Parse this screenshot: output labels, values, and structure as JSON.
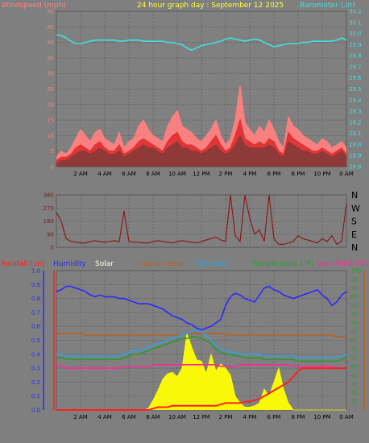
{
  "chart_data": [
    {
      "type": "line",
      "title": "24 hour graph day : September 12 2025",
      "left_axis_label": "Windspeed (mph)",
      "right_axis_label": "Barometer (.in)",
      "x_ticks": [
        "2 AM",
        "4 AM",
        "6 AM",
        "8 AM",
        "10 AM",
        "12 PM",
        "2 PM",
        "4 PM",
        "6 PM",
        "8 PM",
        "10 PM",
        "0 AM"
      ],
      "y_left_ticks": [
        0,
        5,
        10,
        15,
        20,
        25,
        30,
        35,
        40,
        45,
        50
      ],
      "y_left_range": [
        0,
        50
      ],
      "y_right_ticks": [
        28.8,
        28.9,
        29.0,
        29.1,
        29.2,
        29.3,
        29.4,
        29.5,
        29.6,
        29.7,
        29.8,
        29.9,
        30.0,
        30.1,
        30.2
      ],
      "y_right_range": [
        28.8,
        30.2
      ],
      "series": [
        {
          "key": "gust",
          "color": "#ff8080",
          "axis": "left",
          "values": [
            3,
            5,
            4,
            6,
            9,
            12,
            10,
            8,
            11,
            12,
            9,
            8,
            7,
            11,
            6,
            8,
            9,
            13,
            15,
            12,
            10,
            9,
            8,
            13,
            16,
            18,
            13,
            12,
            11,
            9,
            8,
            10,
            12,
            15,
            10,
            7,
            9,
            15,
            26,
            14,
            12,
            10,
            13,
            11,
            15,
            12,
            8,
            6,
            16,
            13,
            12,
            10,
            9,
            8,
            7,
            9,
            8,
            6,
            7,
            8,
            6
          ]
        },
        {
          "key": "speed",
          "color": "#e03030",
          "axis": "left",
          "values": [
            2,
            3,
            3,
            4,
            6,
            7,
            6,
            5,
            7,
            8,
            6,
            5,
            5,
            7,
            4,
            5,
            6,
            8,
            9,
            8,
            7,
            6,
            5,
            8,
            10,
            11,
            8,
            7,
            7,
            6,
            5,
            6,
            8,
            10,
            7,
            5,
            6,
            10,
            15,
            9,
            8,
            7,
            8,
            7,
            9,
            8,
            5,
            4,
            11,
            9,
            8,
            7,
            6,
            5,
            5,
            6,
            5,
            4,
            5,
            6,
            4
          ]
        },
        {
          "key": "average",
          "color": "#8a3a3a",
          "axis": "left",
          "values": [
            1,
            2,
            2,
            3,
            4,
            5,
            5,
            4,
            5,
            6,
            5,
            4,
            4,
            5,
            3,
            4,
            5,
            6,
            7,
            6,
            6,
            5,
            4,
            6,
            7,
            8,
            6,
            6,
            5,
            5,
            4,
            5,
            6,
            7,
            5,
            4,
            5,
            7,
            10,
            7,
            6,
            6,
            6,
            6,
            7,
            6,
            4,
            3,
            8,
            7,
            6,
            5,
            5,
            4,
            4,
            5,
            4,
            3,
            4,
            5,
            3
          ]
        },
        {
          "key": "barometer",
          "color": "#40e0e0",
          "axis": "right",
          "values": [
            29.99,
            29.98,
            29.96,
            29.93,
            29.91,
            29.91,
            29.92,
            29.93,
            29.94,
            29.94,
            29.94,
            29.94,
            29.94,
            29.93,
            29.93,
            29.94,
            29.94,
            29.94,
            29.93,
            29.93,
            29.93,
            29.93,
            29.93,
            29.92,
            29.92,
            29.91,
            29.9,
            29.87,
            29.85,
            29.87,
            29.89,
            29.9,
            29.91,
            29.92,
            29.93,
            29.95,
            29.96,
            29.95,
            29.94,
            29.93,
            29.94,
            29.95,
            29.94,
            29.92,
            29.9,
            29.88,
            29.89,
            29.9,
            29.91,
            29.91,
            29.91,
            29.92,
            29.92,
            29.93,
            29.93,
            29.93,
            29.93,
            29.93,
            29.94,
            29.96,
            29.94
          ]
        }
      ]
    },
    {
      "type": "line",
      "y_left_ticks": [
        0,
        90,
        180,
        270,
        360
      ],
      "y_left_range": [
        0,
        360
      ],
      "direction_labels": [
        "N",
        "W",
        "S",
        "E",
        "N"
      ],
      "series": [
        {
          "key": "wind_direction",
          "color": "#8b1a1a",
          "values": [
            240,
            180,
            60,
            40,
            35,
            30,
            30,
            40,
            45,
            40,
            35,
            40,
            45,
            40,
            250,
            40,
            35,
            35,
            30,
            30,
            40,
            45,
            40,
            35,
            30,
            40,
            45,
            40,
            35,
            30,
            40,
            50,
            60,
            70,
            50,
            40,
            360,
            80,
            40,
            360,
            200,
            90,
            120,
            40,
            360,
            60,
            20,
            20,
            30,
            40,
            80,
            60,
            50,
            40,
            30,
            60,
            40,
            80,
            20,
            40,
            300
          ]
        }
      ]
    },
    {
      "type": "line",
      "legend": [
        "Rainfall (.in)",
        "Humidity",
        "Solar",
        "Indoor temp",
        "Humidex",
        "Temperature (°F)",
        "Dew Point (°F)"
      ],
      "y_left_ticks": [
        0,
        0.1,
        0.2,
        0.3,
        0.4,
        0.5,
        0.6,
        0.7,
        0.8,
        0.9,
        1.0
      ],
      "y_left_range": [
        0,
        1
      ],
      "y_right_ticks": [
        25,
        30,
        35,
        40,
        45,
        50,
        55,
        60,
        65,
        70,
        75,
        80,
        85,
        90,
        95,
        100
      ],
      "y_right_range": [
        20,
        100
      ],
      "series": [
        {
          "key": "rainfall",
          "color": "#ff2020",
          "axis": "left",
          "values": [
            0,
            0,
            0,
            0,
            0,
            0,
            0,
            0,
            0,
            0,
            0,
            0,
            0,
            0,
            0,
            0,
            0,
            0,
            0,
            0,
            0.01,
            0.02,
            0.02,
            0.02,
            0.03,
            0.03,
            0.03,
            0.03,
            0.03,
            0.03,
            0.03,
            0.03,
            0.03,
            0.03,
            0.04,
            0.05,
            0.05,
            0.05,
            0.05,
            0.06,
            0.06,
            0.07,
            0.08,
            0.1,
            0.12,
            0.14,
            0.16,
            0.18,
            0.2,
            0.24,
            0.28,
            0.3,
            0.3,
            0.3,
            0.3,
            0.3,
            0.3,
            0.3,
            0.3,
            0.3,
            0.3
          ]
        },
        {
          "key": "humidity",
          "color": "#2a2aff",
          "axis": "right",
          "values": [
            88,
            89,
            91,
            91,
            90,
            89,
            88,
            86,
            85,
            86,
            85,
            85,
            85,
            84,
            84,
            83,
            82,
            81,
            81,
            81,
            80,
            79,
            78,
            76,
            74,
            73,
            72,
            70,
            69,
            67,
            66,
            67,
            68,
            70,
            72,
            80,
            85,
            87,
            86,
            84,
            83,
            82,
            86,
            90,
            91,
            89,
            88,
            86,
            85,
            84,
            85,
            86,
            87,
            88,
            89,
            86,
            84,
            80,
            82,
            86,
            88
          ]
        },
        {
          "key": "solar",
          "color": "#ffff00",
          "axis": "left",
          "values": [
            0,
            0,
            0,
            0,
            0,
            0,
            0,
            0,
            0,
            0,
            0,
            0,
            0,
            0,
            0,
            0,
            0,
            0,
            0,
            0.01,
            0.07,
            0.14,
            0.22,
            0.26,
            0.27,
            0.24,
            0.3,
            0.55,
            0.45,
            0.36,
            0.35,
            0.26,
            0.4,
            0.28,
            0.33,
            0.3,
            0.25,
            0.1,
            0.05,
            0.02,
            0.02,
            0.03,
            0.05,
            0.15,
            0.1,
            0.2,
            0.3,
            0.15,
            0.05,
            0,
            0,
            0,
            0,
            0,
            0,
            0,
            0,
            0,
            0,
            0,
            0
          ]
        },
        {
          "key": "indoor_temp",
          "color": "#b8601c",
          "axis": "right",
          "values": [
            64,
            64,
            64,
            64,
            64,
            64,
            63,
            63,
            63,
            63,
            63,
            63,
            63,
            63,
            63,
            63,
            63,
            63,
            63,
            63,
            63,
            63,
            63,
            63,
            63,
            63,
            63,
            64,
            64,
            64,
            64,
            64,
            64,
            64,
            64,
            63,
            63,
            63,
            63,
            63,
            63,
            63,
            63,
            63,
            63,
            63,
            63,
            63,
            63,
            63,
            63,
            63,
            63,
            63,
            63,
            63,
            63,
            63,
            62,
            62,
            62
          ]
        },
        {
          "key": "humidex",
          "color": "#30a0e0",
          "axis": "right",
          "values": [
            52,
            52,
            51,
            51,
            51,
            51,
            51,
            51,
            51,
            51,
            51,
            51,
            51,
            51,
            52,
            53,
            54,
            54,
            55,
            56,
            57,
            58,
            59,
            60,
            61,
            62,
            63,
            64,
            65,
            66,
            65,
            63,
            60,
            57,
            55,
            54,
            53,
            53,
            52,
            52,
            52,
            52,
            52,
            51,
            51,
            51,
            51,
            51,
            51,
            51,
            50,
            50,
            50,
            50,
            50,
            50,
            50,
            50,
            50,
            51,
            52
          ]
        },
        {
          "key": "temperature",
          "color": "#2e9a2e",
          "axis": "right",
          "values": [
            50,
            50,
            49,
            49,
            49,
            49,
            49,
            49,
            49,
            49,
            49,
            49,
            49,
            49,
            50,
            51,
            52,
            52,
            53,
            54,
            55,
            56,
            57,
            58,
            59,
            60,
            61,
            61,
            62,
            62,
            61,
            60,
            58,
            55,
            53,
            52,
            52,
            51,
            51,
            50,
            50,
            50,
            50,
            49,
            49,
            49,
            49,
            49,
            49,
            49,
            48,
            48,
            48,
            48,
            48,
            48,
            48,
            48,
            48,
            49,
            50
          ]
        },
        {
          "key": "dew_point",
          "color": "#ff2a9a",
          "axis": "right",
          "values": [
            45,
            45,
            44,
            44,
            44,
            44,
            44,
            44,
            44,
            44,
            44,
            44,
            44,
            44,
            45,
            45,
            45,
            45,
            45,
            45,
            46,
            46,
            46,
            46,
            46,
            46,
            46,
            46,
            46,
            46,
            46,
            46,
            46,
            46,
            45,
            45,
            45,
            45,
            46,
            46,
            46,
            46,
            46,
            46,
            46,
            46,
            46,
            46,
            46,
            45,
            45,
            45,
            45,
            45,
            45,
            45,
            45,
            45,
            44,
            44,
            44
          ]
        }
      ]
    }
  ],
  "legend_colors": {
    "rainfall": "#ff2020",
    "humidity": "#2a2aff",
    "solar": "#ffffdd",
    "indoor": "#b8601c",
    "humidex": "#30a0e0",
    "temperature": "#2e9a2e",
    "dewpoint": "#ff2a9a"
  }
}
